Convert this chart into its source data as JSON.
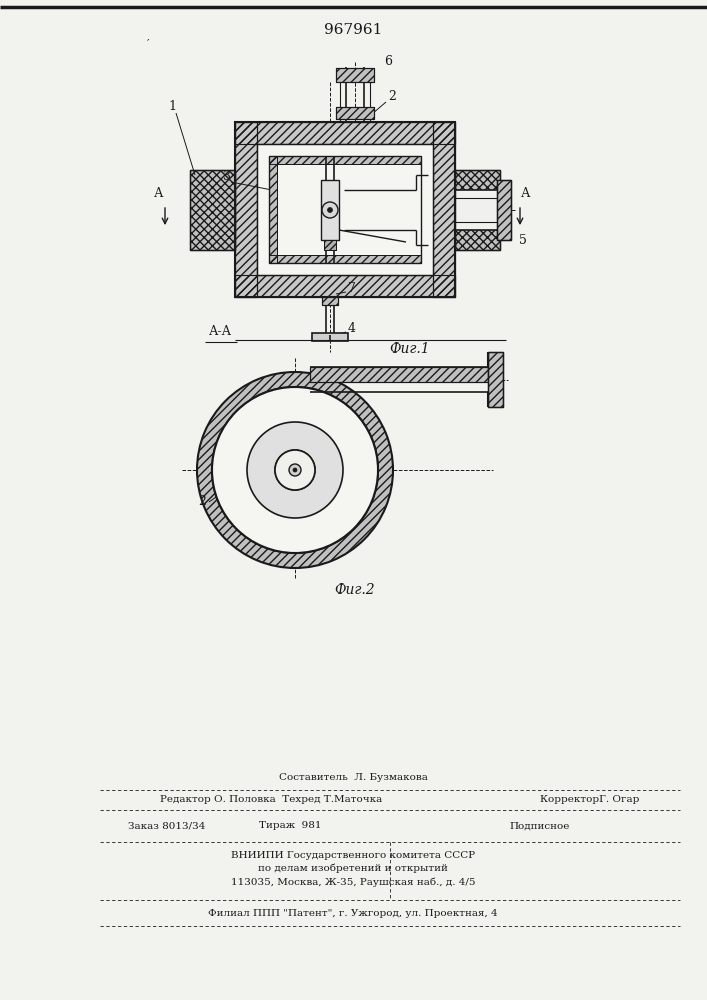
{
  "patent_number": "967961",
  "background_color": "#f2f2ee",
  "line_color": "#1a1a1a",
  "fig1_label": "Фиг.1",
  "fig2_label": "Фиг.2",
  "section_label": "А-А"
}
